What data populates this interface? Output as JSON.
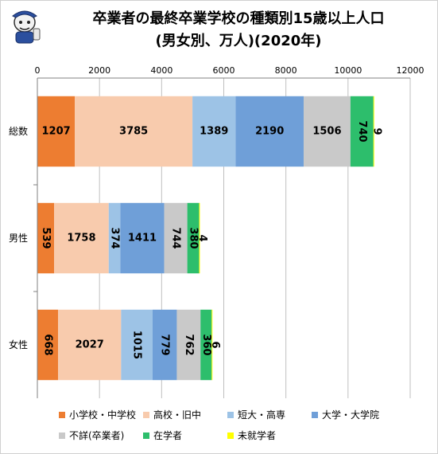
{
  "title": {
    "line1": "卒業者の最終卒業学校の種類別15歳以上人口",
    "line2": "(男女別、万人)(2020年)"
  },
  "chart_data": {
    "type": "bar",
    "orientation": "horizontal",
    "stacked": true,
    "xlim": [
      0,
      12000
    ],
    "x_ticks": [
      "0",
      "2000",
      "4000",
      "6000",
      "8000",
      "10000",
      "12000"
    ],
    "grid": true,
    "legend_position": "bottom",
    "categories": [
      "総数",
      "男性",
      "女性"
    ],
    "series": [
      {
        "name": "小学校・中学校",
        "color": "#ED7D31",
        "values": [
          1207,
          539,
          668
        ],
        "labels": [
          "1207",
          "539",
          "668"
        ]
      },
      {
        "name": "高校・旧中",
        "color": "#F8CBAD",
        "values": [
          3785,
          1758,
          2027
        ],
        "labels": [
          "3785",
          "1758",
          "2027"
        ]
      },
      {
        "name": "短大・高専",
        "color": "#9DC3E6",
        "values": [
          1389,
          374,
          1015
        ],
        "labels": [
          "1389",
          "374",
          "1015"
        ]
      },
      {
        "name": "大学・大学院",
        "color": "#6F9FD8",
        "values": [
          2190,
          1411,
          779
        ],
        "labels": [
          "2190",
          "1411",
          "779"
        ]
      },
      {
        "name": "不詳(卒業者)",
        "color": "#C9C9C9",
        "values": [
          1506,
          744,
          762
        ],
        "labels": [
          "1506",
          "744",
          "762"
        ]
      },
      {
        "name": "在学者",
        "color": "#2DBE6C",
        "values": [
          740,
          380,
          360
        ],
        "labels": [
          "740",
          "380",
          "360"
        ]
      },
      {
        "name": "未就学者",
        "color": "#FFFF00",
        "values": [
          9,
          4,
          6
        ],
        "labels": [
          "9",
          "4",
          "6"
        ]
      }
    ]
  }
}
